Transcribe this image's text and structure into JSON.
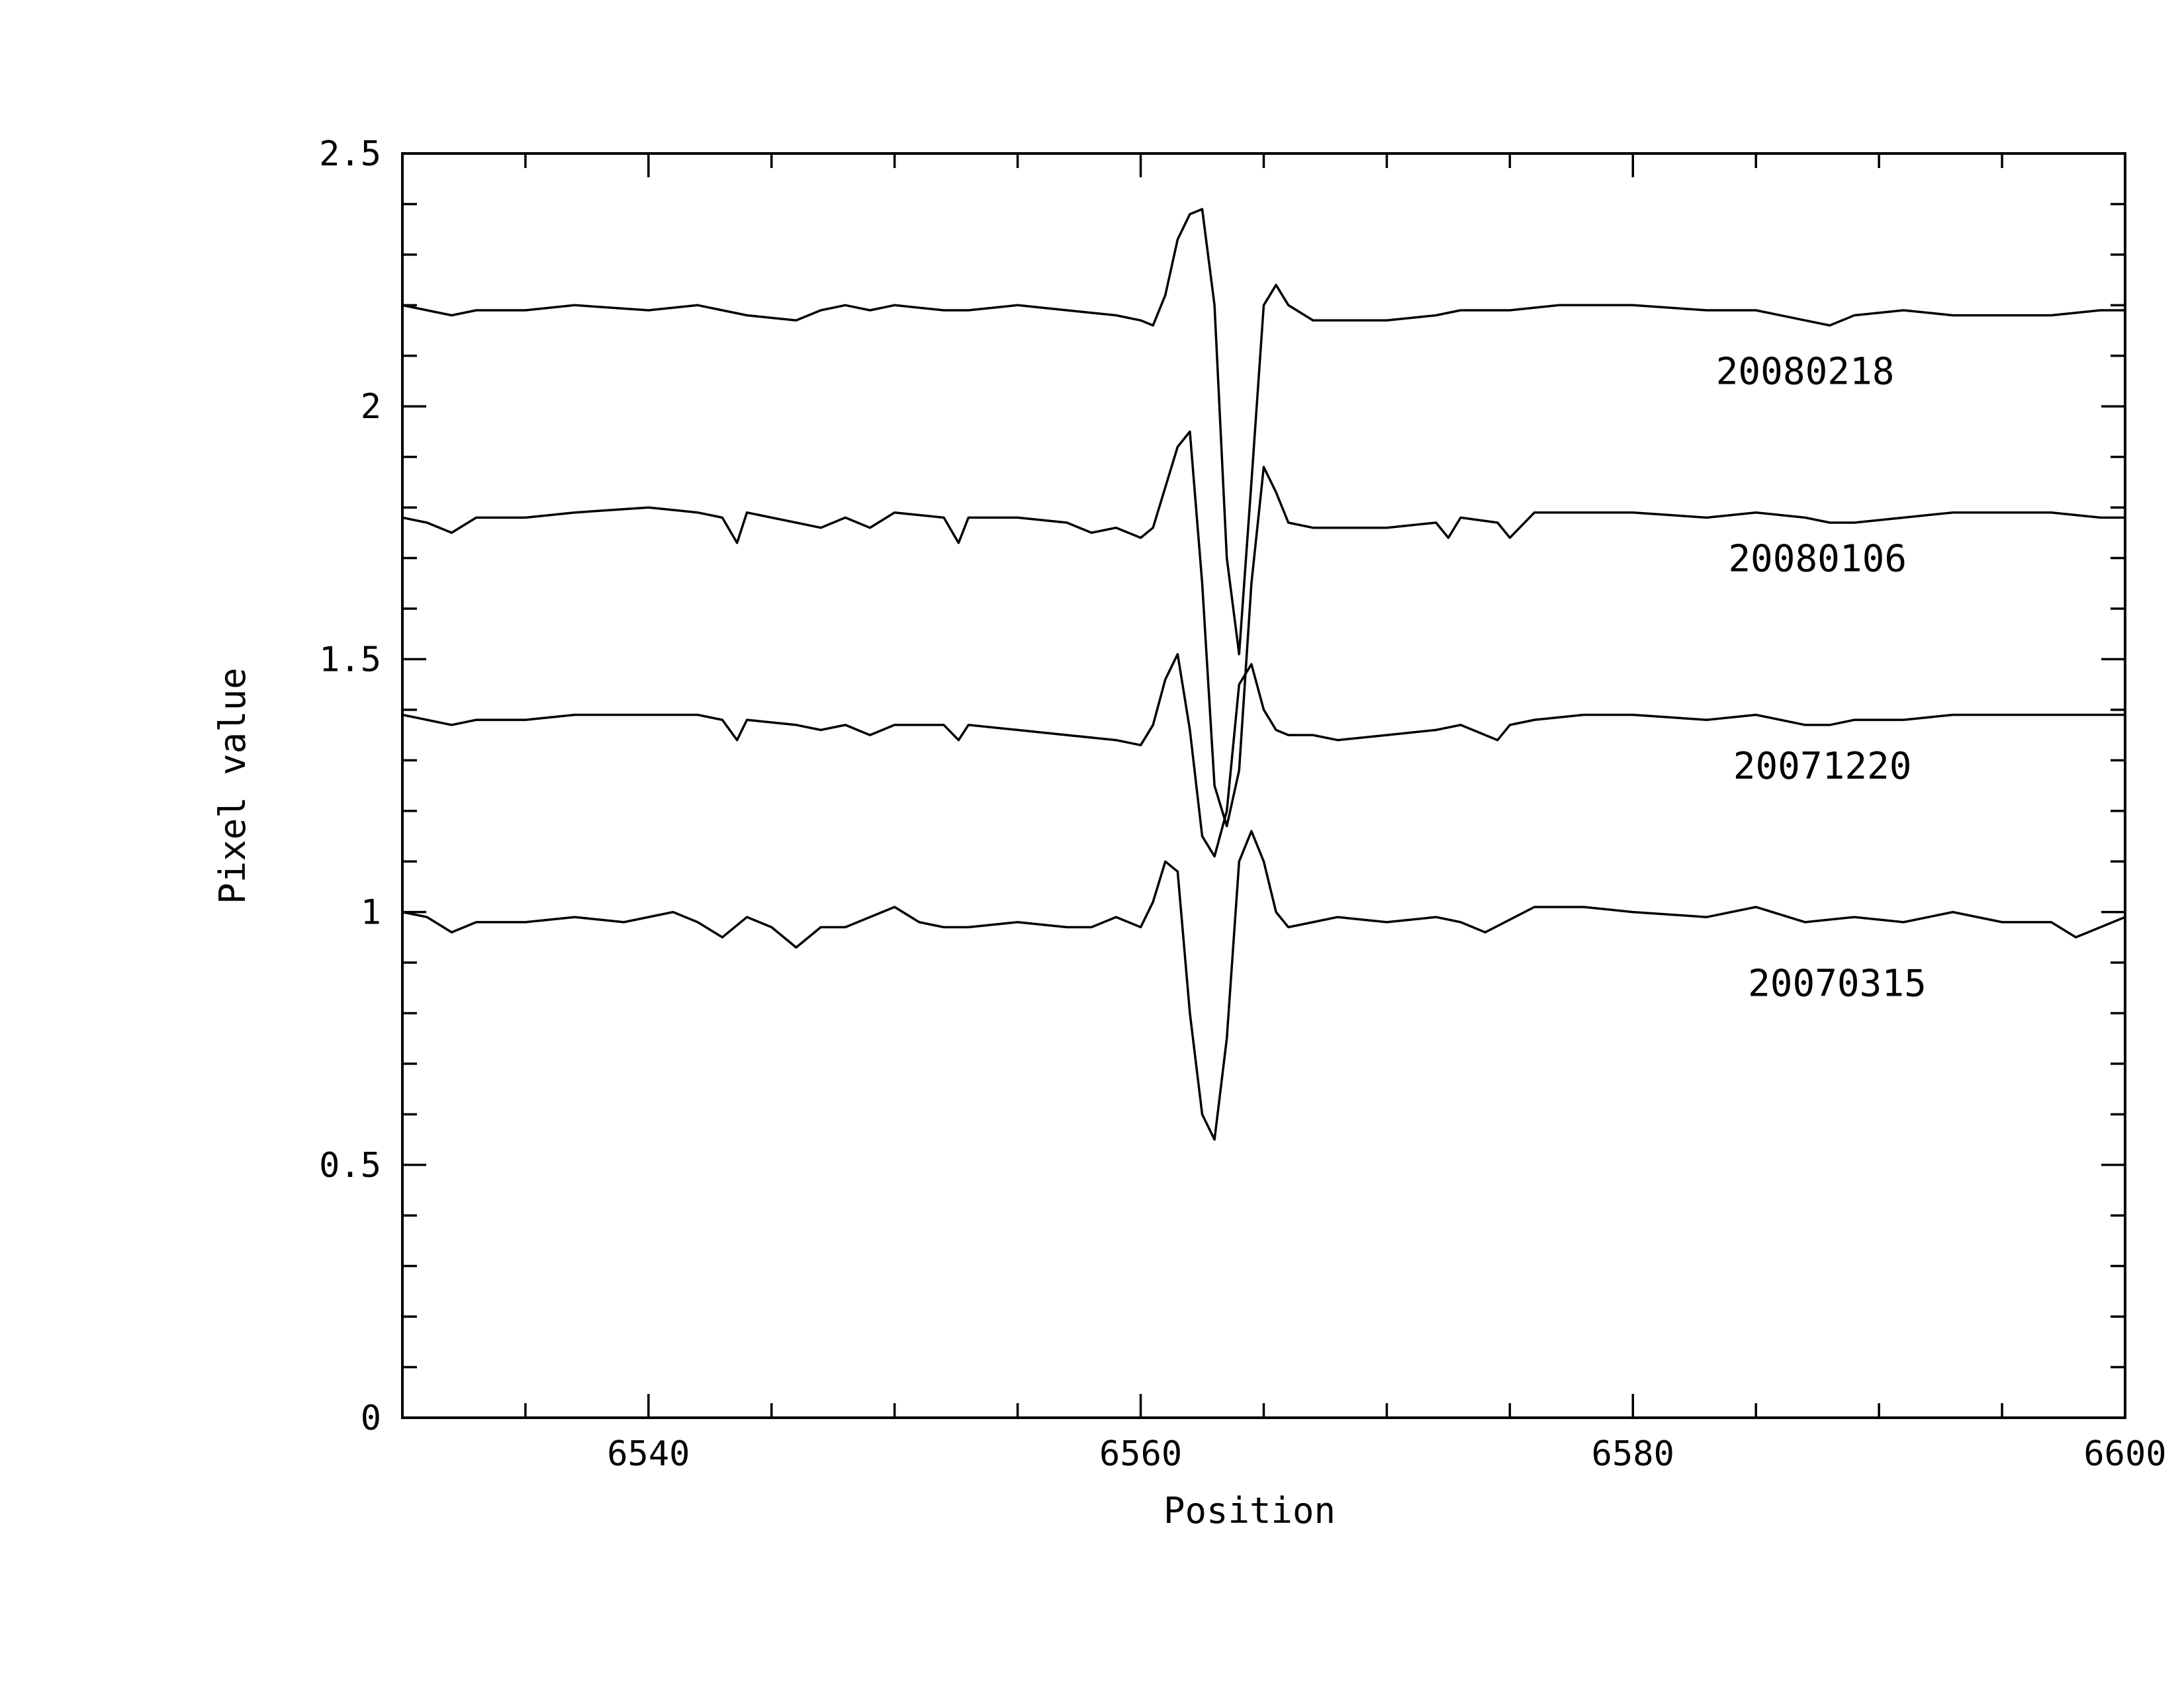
{
  "chart_data": {
    "type": "line",
    "xlabel": "Position",
    "ylabel": "Pixel value",
    "xlim": [
      6530,
      6600
    ],
    "ylim": [
      0,
      2.5
    ],
    "x_ticks": [
      {
        "value": 6540,
        "label": "6540"
      },
      {
        "value": 6560,
        "label": "6560"
      },
      {
        "value": 6580,
        "label": "6580"
      },
      {
        "value": 6600,
        "label": "6600"
      }
    ],
    "x_minor_step": 5,
    "y_ticks": [
      {
        "value": 0,
        "label": "0"
      },
      {
        "value": 0.5,
        "label": "0.5"
      },
      {
        "value": 1,
        "label": "1"
      },
      {
        "value": 1.5,
        "label": "1.5"
      },
      {
        "value": 2,
        "label": "2"
      },
      {
        "value": 2.5,
        "label": "2.5"
      }
    ],
    "y_minor_step": 0.1,
    "grid": false,
    "series": [
      {
        "name": "20080218",
        "label_at": {
          "x": 6587,
          "y": 2.07
        },
        "x": [
          6530,
          6531,
          6532,
          6533,
          6535,
          6537,
          6540,
          6542,
          6543,
          6544,
          6546,
          6547,
          6548,
          6549,
          6550,
          6552,
          6553,
          6555,
          6557,
          6559,
          6560,
          6560.5,
          6561,
          6561.5,
          6562,
          6562.5,
          6563,
          6563.5,
          6564,
          6564.5,
          6565,
          6565.5,
          6566,
          6567,
          6568,
          6570,
          6572,
          6573,
          6575,
          6577,
          6580,
          6583,
          6585,
          6587,
          6588,
          6589,
          6591,
          6593,
          6595,
          6597,
          6599,
          6600
        ],
        "values": [
          2.2,
          2.19,
          2.18,
          2.19,
          2.19,
          2.2,
          2.19,
          2.2,
          2.19,
          2.18,
          2.17,
          2.19,
          2.2,
          2.19,
          2.2,
          2.19,
          2.19,
          2.2,
          2.19,
          2.18,
          2.17,
          2.16,
          2.22,
          2.33,
          2.38,
          2.39,
          2.2,
          1.7,
          1.51,
          1.85,
          2.2,
          2.24,
          2.2,
          2.17,
          2.17,
          2.17,
          2.18,
          2.19,
          2.19,
          2.2,
          2.2,
          2.19,
          2.19,
          2.17,
          2.16,
          2.18,
          2.19,
          2.18,
          2.18,
          2.18,
          2.19,
          2.19
        ]
      },
      {
        "name": "20080106",
        "label_at": {
          "x": 6587.5,
          "y": 1.7
        },
        "x": [
          6530,
          6531,
          6532,
          6533,
          6535,
          6537,
          6540,
          6542,
          6543,
          6543.6,
          6544,
          6546,
          6547,
          6548,
          6549,
          6550,
          6552,
          6552.6,
          6553,
          6555,
          6557,
          6558,
          6559,
          6560,
          6560.5,
          6561,
          6561.5,
          6562,
          6562.5,
          6563,
          6563.5,
          6564,
          6564.5,
          6565,
          6565.5,
          6566,
          6567,
          6568,
          6570,
          6572,
          6572.5,
          6573,
          6574.5,
          6575,
          6576,
          6578,
          6580,
          6583,
          6585,
          6587,
          6588,
          6589,
          6591,
          6593,
          6595,
          6597,
          6599,
          6600
        ],
        "values": [
          1.78,
          1.77,
          1.75,
          1.78,
          1.78,
          1.79,
          1.8,
          1.79,
          1.78,
          1.73,
          1.79,
          1.77,
          1.76,
          1.78,
          1.76,
          1.79,
          1.78,
          1.73,
          1.78,
          1.78,
          1.77,
          1.75,
          1.76,
          1.74,
          1.76,
          1.84,
          1.92,
          1.95,
          1.65,
          1.25,
          1.17,
          1.28,
          1.65,
          1.88,
          1.83,
          1.77,
          1.76,
          1.76,
          1.76,
          1.77,
          1.74,
          1.78,
          1.77,
          1.74,
          1.79,
          1.79,
          1.79,
          1.78,
          1.79,
          1.78,
          1.77,
          1.77,
          1.78,
          1.79,
          1.79,
          1.79,
          1.78,
          1.78
        ]
      },
      {
        "name": "20071220",
        "label_at": {
          "x": 6587.7,
          "y": 1.29
        },
        "x": [
          6530,
          6531,
          6532,
          6533,
          6535,
          6537,
          6540,
          6542,
          6543,
          6543.6,
          6544,
          6546,
          6547,
          6548,
          6549,
          6550,
          6552,
          6552.6,
          6553,
          6555,
          6557,
          6559,
          6560,
          6560.5,
          6561,
          6561.5,
          6562,
          6562.5,
          6563,
          6563.5,
          6564,
          6564.5,
          6565,
          6565.5,
          6566,
          6567,
          6568,
          6570,
          6572,
          6573,
          6574.5,
          6575,
          6576,
          6578,
          6580,
          6583,
          6585,
          6587,
          6588,
          6589,
          6591,
          6593,
          6595,
          6597,
          6599,
          6600
        ],
        "values": [
          1.39,
          1.38,
          1.37,
          1.38,
          1.38,
          1.39,
          1.39,
          1.39,
          1.38,
          1.34,
          1.38,
          1.37,
          1.36,
          1.37,
          1.35,
          1.37,
          1.37,
          1.34,
          1.37,
          1.36,
          1.35,
          1.34,
          1.33,
          1.37,
          1.46,
          1.51,
          1.36,
          1.15,
          1.11,
          1.2,
          1.45,
          1.49,
          1.4,
          1.36,
          1.35,
          1.35,
          1.34,
          1.35,
          1.36,
          1.37,
          1.34,
          1.37,
          1.38,
          1.39,
          1.39,
          1.38,
          1.39,
          1.37,
          1.37,
          1.38,
          1.38,
          1.39,
          1.39,
          1.39,
          1.39,
          1.39
        ]
      },
      {
        "name": "20070315",
        "label_at": {
          "x": 6588.3,
          "y": 0.86
        },
        "x": [
          6530,
          6531,
          6532,
          6533,
          6535,
          6537,
          6539,
          6541,
          6542,
          6543,
          6544,
          6545,
          6546,
          6547,
          6548,
          6549,
          6550,
          6551,
          6552,
          6553,
          6555,
          6557,
          6558,
          6559,
          6560,
          6560.5,
          6561,
          6561.5,
          6562,
          6562.5,
          6563,
          6563.5,
          6564,
          6564.5,
          6565,
          6565.5,
          6566,
          6567,
          6568,
          6570,
          6572,
          6573,
          6574,
          6576,
          6578,
          6580,
          6583,
          6585,
          6587,
          6589,
          6591,
          6593,
          6595,
          6597,
          6598,
          6599,
          6600
        ],
        "values": [
          1.0,
          0.99,
          0.96,
          0.98,
          0.98,
          0.99,
          0.98,
          1.0,
          0.98,
          0.95,
          0.99,
          0.97,
          0.93,
          0.97,
          0.97,
          0.99,
          1.01,
          0.98,
          0.97,
          0.97,
          0.98,
          0.97,
          0.97,
          0.99,
          0.97,
          1.02,
          1.1,
          1.08,
          0.8,
          0.6,
          0.55,
          0.75,
          1.1,
          1.16,
          1.1,
          1.0,
          0.97,
          0.98,
          0.99,
          0.98,
          0.99,
          0.98,
          0.96,
          1.01,
          1.01,
          1.0,
          0.99,
          1.01,
          0.98,
          0.99,
          0.98,
          1.0,
          0.98,
          0.98,
          0.95,
          0.97,
          0.99
        ]
      }
    ]
  }
}
